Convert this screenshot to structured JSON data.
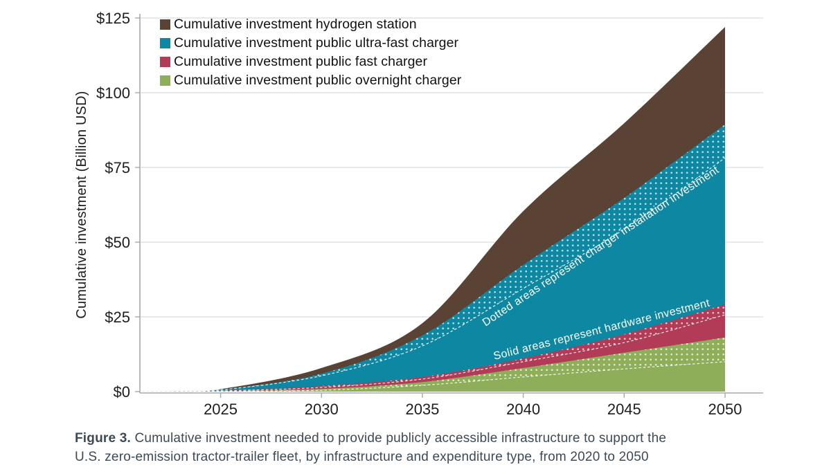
{
  "chart_data": {
    "type": "area",
    "stacked": true,
    "title": "",
    "xlabel": "",
    "ylabel": "Cumulative investment (Billion USD)",
    "ylim": [
      0,
      125
    ],
    "xlim": [
      2021,
      2050
    ],
    "grid": "horizontal",
    "legend_position": "top-left",
    "ytick_values": [
      0,
      25,
      50,
      75,
      100,
      125
    ],
    "ytick_labels": [
      "$0",
      "$25",
      "$50",
      "$75",
      "$100",
      "$125"
    ],
    "xtick_values": [
      2025,
      2030,
      2035,
      2040,
      2045,
      2050
    ],
    "xtick_labels": [
      "2025",
      "2030",
      "2035",
      "2040",
      "2045",
      "2050"
    ],
    "x": [
      2021,
      2023,
      2025,
      2030,
      2035,
      2040,
      2045,
      2050
    ],
    "series": [
      {
        "name": "Public overnight charger hardware",
        "color": "#8fae59",
        "pattern": "solid",
        "values": [
          0,
          0.01,
          0.08,
          0.45,
          2.1,
          4.9,
          7.6,
          10.0
        ]
      },
      {
        "name": "Public overnight charger installation",
        "color": "#8fae59",
        "pattern": "dotted",
        "values": [
          0,
          0.01,
          0.07,
          0.45,
          1.1,
          3.0,
          5.4,
          8.1
        ]
      },
      {
        "name": "Public fast charger hardware",
        "color": "#b23b57",
        "pattern": "solid",
        "values": [
          0,
          0.0,
          0.07,
          0.5,
          1.0,
          2.1,
          3.4,
          7.6
        ]
      },
      {
        "name": "Public fast charger installation",
        "color": "#b23b57",
        "pattern": "dotted",
        "values": [
          0,
          0.0,
          0.08,
          0.45,
          0.7,
          1.1,
          2.8,
          3.5
        ]
      },
      {
        "name": "Public ultra-fast charger hardware",
        "color": "#0e87a2",
        "pattern": "solid",
        "values": [
          0,
          0.05,
          0.25,
          3.45,
          10.4,
          23.4,
          35.1,
          49.0
        ]
      },
      {
        "name": "Public ultra-fast charger installation",
        "color": "#0e87a2",
        "pattern": "dotted",
        "values": [
          0,
          0.0,
          0.1,
          0.7,
          3.5,
          7.9,
          10.5,
          11.2
        ]
      },
      {
        "name": "Hydrogen station",
        "color": "#5a4334",
        "pattern": "solid",
        "values": [
          0,
          0.02,
          0.15,
          1.9,
          4.1,
          18.0,
          25.0,
          32.6
        ]
      }
    ],
    "legend": [
      {
        "label": "Cumulative investment hydrogen station",
        "color": "#5a4334"
      },
      {
        "label": "Cumulative investment public ultra-fast charger",
        "color": "#0e87a2"
      },
      {
        "label": "Cumulative investment public fast charger",
        "color": "#b23b57"
      },
      {
        "label": "Cumulative investment public overnight charger",
        "color": "#8fae59"
      }
    ],
    "annotations": [
      {
        "text": "Dotted areas represent charger installation investment",
        "rotation": -33.5
      },
      {
        "text": "Solid areas represent hardware investment",
        "rotation": -14
      }
    ],
    "colors": {
      "grid": "#dcdcdc",
      "axis": "#a6a9ac",
      "tick_text": "#1e1e1e",
      "separator": "#ffffff"
    }
  },
  "caption": {
    "prefix": "Figure 3.",
    "line1": " Cumulative investment needed to provide publicly accessible infrastructure to support the",
    "line2": "U.S. zero-emission tractor-trailer fleet, by infrastructure and expenditure type, from 2020 to 2050"
  }
}
